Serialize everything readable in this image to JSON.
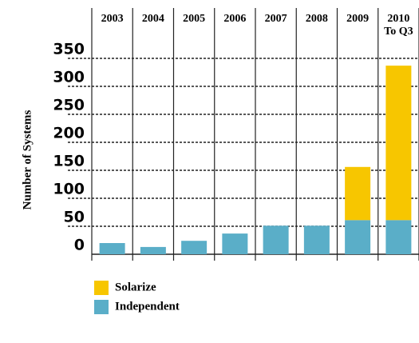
{
  "chart_data": {
    "type": "stacked_bar",
    "y_label": "Number of Systems",
    "categories": [
      "2003",
      "2004",
      "2005",
      "2006",
      "2007",
      "2008",
      "2009",
      "2010"
    ],
    "category_note": "To Q3",
    "series": [
      {
        "name": "Solarize",
        "color": "#f7c600",
        "values": [
          0,
          0,
          0,
          0,
          0,
          0,
          95,
          276
        ]
      },
      {
        "name": "Independent",
        "color": "#5aaec8",
        "values": [
          20,
          13,
          24,
          37,
          51,
          51,
          61,
          61
        ]
      }
    ],
    "ylim": [
      0,
      350
    ],
    "yticks": [
      0,
      50,
      100,
      150,
      200,
      250,
      300,
      350
    ],
    "grid": true
  }
}
